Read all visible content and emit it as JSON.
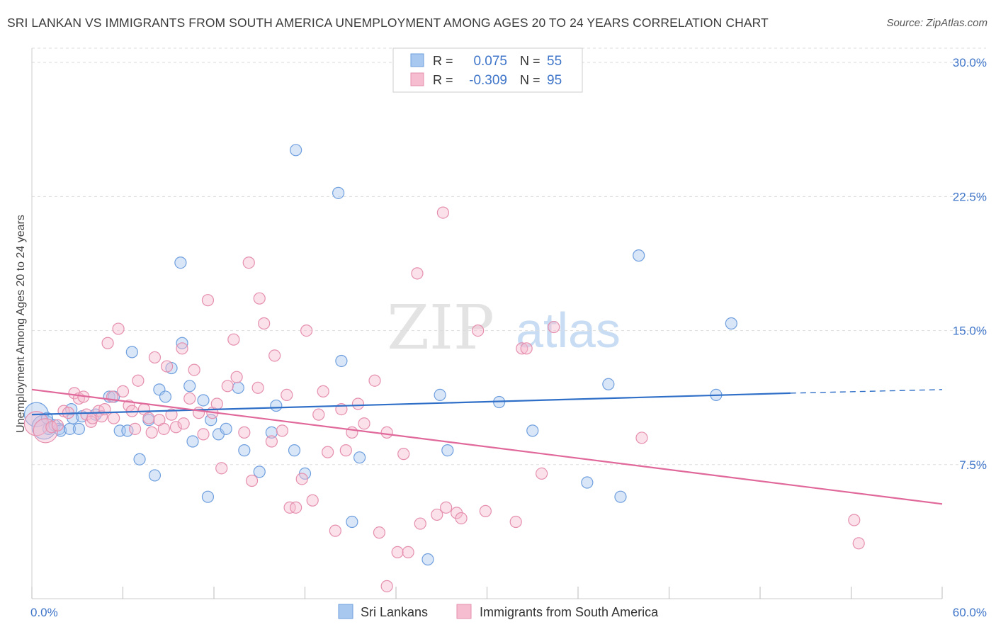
{
  "header": {
    "title": "SRI LANKAN VS IMMIGRANTS FROM SOUTH AMERICA UNEMPLOYMENT AMONG AGES 20 TO 24 YEARS CORRELATION CHART",
    "source": "Source: ZipAtlas.com"
  },
  "watermark": {
    "zip": "ZIP",
    "atlas": "atlas"
  },
  "colors": {
    "blue_fill": "#a9c8ef",
    "blue_stroke": "#6f9fde",
    "blue_line": "#2f6fc8",
    "pink_fill": "#f6bcd0",
    "pink_stroke": "#e58fae",
    "pink_line": "#e0689a",
    "tick_label": "#3f75c9",
    "grid": "#dddddd"
  },
  "chart_data": {
    "type": "scatter",
    "title": "SRI LANKAN VS IMMIGRANTS FROM SOUTH AMERICA UNEMPLOYMENT AMONG AGES 20 TO 24 YEARS CORRELATION CHART",
    "xlabel": "",
    "ylabel": "Unemployment Among Ages 20 to 24 years",
    "xlim": [
      0,
      60
    ],
    "ylim": [
      0,
      30.8
    ],
    "x_tick_labels": [
      "0.0%",
      "60.0%"
    ],
    "y_ticks": [
      7.5,
      15.0,
      22.5,
      30.0
    ],
    "y_tick_labels": [
      "7.5%",
      "15.0%",
      "22.5%",
      "30.0%"
    ],
    "grid": true,
    "legend_placement": "top-center",
    "legend": [
      {
        "r_label": "R =",
        "r_value": "0.075",
        "n_label": "N =",
        "n_value": "55"
      },
      {
        "r_label": "R =",
        "r_value": "-0.309",
        "n_label": "N =",
        "n_value": "95"
      }
    ],
    "bottom_legend": [
      "Sri Lankans",
      "Immigrants from South America"
    ],
    "series": [
      {
        "name": "Sri Lankans",
        "trend": {
          "x0": 0,
          "y0": 10.3,
          "x1": 50,
          "y1": 11.5,
          "dashed_to_x": 60,
          "dashed_to_y": 11.7
        },
        "points": [
          {
            "x": 0.3,
            "y": 10.3,
            "big": true
          },
          {
            "x": 0.8,
            "y": 9.6,
            "big": true
          },
          {
            "x": 1.0,
            "y": 10.1
          },
          {
            "x": 1.1,
            "y": 9.5
          },
          {
            "x": 1.5,
            "y": 9.7
          },
          {
            "x": 1.8,
            "y": 9.5
          },
          {
            "x": 1.9,
            "y": 9.4
          },
          {
            "x": 2.5,
            "y": 9.5
          },
          {
            "x": 2.6,
            "y": 10.6
          },
          {
            "x": 2.7,
            "y": 10.1
          },
          {
            "x": 3.1,
            "y": 9.5
          },
          {
            "x": 3.3,
            "y": 10.2
          },
          {
            "x": 4.2,
            "y": 10.3
          },
          {
            "x": 5.1,
            "y": 11.3
          },
          {
            "x": 5.4,
            "y": 11.3
          },
          {
            "x": 5.8,
            "y": 9.4
          },
          {
            "x": 6.3,
            "y": 9.4
          },
          {
            "x": 6.6,
            "y": 13.8
          },
          {
            "x": 7.1,
            "y": 7.8
          },
          {
            "x": 7.7,
            "y": 10.0
          },
          {
            "x": 8.1,
            "y": 6.9
          },
          {
            "x": 8.4,
            "y": 11.7
          },
          {
            "x": 8.8,
            "y": 11.3
          },
          {
            "x": 9.2,
            "y": 12.9
          },
          {
            "x": 9.8,
            "y": 18.8
          },
          {
            "x": 9.9,
            "y": 14.3
          },
          {
            "x": 10.4,
            "y": 11.9
          },
          {
            "x": 10.6,
            "y": 8.8
          },
          {
            "x": 11.3,
            "y": 11.1
          },
          {
            "x": 11.6,
            "y": 5.7
          },
          {
            "x": 11.8,
            "y": 10.0
          },
          {
            "x": 12.3,
            "y": 9.2
          },
          {
            "x": 12.8,
            "y": 9.5
          },
          {
            "x": 13.6,
            "y": 11.8
          },
          {
            "x": 14.0,
            "y": 8.3
          },
          {
            "x": 15.0,
            "y": 7.1
          },
          {
            "x": 15.8,
            "y": 9.3
          },
          {
            "x": 16.1,
            "y": 10.8
          },
          {
            "x": 17.3,
            "y": 8.3
          },
          {
            "x": 17.4,
            "y": 25.1
          },
          {
            "x": 18.0,
            "y": 7.0
          },
          {
            "x": 20.2,
            "y": 22.7
          },
          {
            "x": 20.4,
            "y": 13.3
          },
          {
            "x": 21.1,
            "y": 4.3
          },
          {
            "x": 21.6,
            "y": 7.9
          },
          {
            "x": 26.1,
            "y": 2.2
          },
          {
            "x": 26.9,
            "y": 11.4
          },
          {
            "x": 27.4,
            "y": 8.3
          },
          {
            "x": 30.8,
            "y": 11.0
          },
          {
            "x": 33.0,
            "y": 9.4
          },
          {
            "x": 36.6,
            "y": 6.5
          },
          {
            "x": 38.0,
            "y": 12.0
          },
          {
            "x": 38.8,
            "y": 5.7
          },
          {
            "x": 40.0,
            "y": 19.2
          },
          {
            "x": 45.1,
            "y": 11.4
          },
          {
            "x": 46.1,
            "y": 15.4
          }
        ]
      },
      {
        "name": "Immigrants from South America",
        "trend": {
          "x0": 0,
          "y0": 11.7,
          "x1": 60,
          "y1": 5.3
        },
        "points": [
          {
            "x": 0.3,
            "y": 9.8,
            "big": true
          },
          {
            "x": 0.9,
            "y": 9.4,
            "big": true
          },
          {
            "x": 1.3,
            "y": 9.6
          },
          {
            "x": 1.7,
            "y": 9.7
          },
          {
            "x": 2.1,
            "y": 10.5
          },
          {
            "x": 2.4,
            "y": 10.4
          },
          {
            "x": 2.8,
            "y": 11.5
          },
          {
            "x": 3.1,
            "y": 11.2
          },
          {
            "x": 3.4,
            "y": 11.3
          },
          {
            "x": 3.6,
            "y": 10.3
          },
          {
            "x": 3.9,
            "y": 9.9
          },
          {
            "x": 4.0,
            "y": 10.1
          },
          {
            "x": 4.4,
            "y": 10.5
          },
          {
            "x": 4.6,
            "y": 10.2
          },
          {
            "x": 4.8,
            "y": 10.6
          },
          {
            "x": 5.0,
            "y": 14.3
          },
          {
            "x": 5.3,
            "y": 11.3
          },
          {
            "x": 5.4,
            "y": 10.1
          },
          {
            "x": 5.7,
            "y": 15.1
          },
          {
            "x": 6.0,
            "y": 11.6
          },
          {
            "x": 6.4,
            "y": 10.8
          },
          {
            "x": 6.6,
            "y": 10.5
          },
          {
            "x": 6.8,
            "y": 9.5
          },
          {
            "x": 7.0,
            "y": 12.2
          },
          {
            "x": 7.4,
            "y": 10.6
          },
          {
            "x": 7.7,
            "y": 10.1
          },
          {
            "x": 7.9,
            "y": 9.3
          },
          {
            "x": 8.1,
            "y": 13.5
          },
          {
            "x": 8.4,
            "y": 10.0
          },
          {
            "x": 8.7,
            "y": 9.5
          },
          {
            "x": 8.9,
            "y": 13.0
          },
          {
            "x": 9.2,
            "y": 10.3
          },
          {
            "x": 9.5,
            "y": 9.6
          },
          {
            "x": 9.9,
            "y": 14.0
          },
          {
            "x": 10.0,
            "y": 9.8
          },
          {
            "x": 10.4,
            "y": 11.2
          },
          {
            "x": 10.7,
            "y": 12.8
          },
          {
            "x": 11.0,
            "y": 10.4
          },
          {
            "x": 11.3,
            "y": 9.2
          },
          {
            "x": 11.6,
            "y": 16.7
          },
          {
            "x": 11.9,
            "y": 10.4
          },
          {
            "x": 12.2,
            "y": 10.9
          },
          {
            "x": 12.5,
            "y": 7.3
          },
          {
            "x": 12.9,
            "y": 11.9
          },
          {
            "x": 13.3,
            "y": 14.5
          },
          {
            "x": 13.5,
            "y": 12.4
          },
          {
            "x": 14.0,
            "y": 9.3
          },
          {
            "x": 14.3,
            "y": 18.8
          },
          {
            "x": 14.5,
            "y": 6.6
          },
          {
            "x": 14.9,
            "y": 11.8
          },
          {
            "x": 15.0,
            "y": 16.8
          },
          {
            "x": 15.3,
            "y": 15.4
          },
          {
            "x": 15.8,
            "y": 8.8
          },
          {
            "x": 16.0,
            "y": 13.6
          },
          {
            "x": 16.5,
            "y": 9.4
          },
          {
            "x": 16.8,
            "y": 11.4
          },
          {
            "x": 17.0,
            "y": 5.1
          },
          {
            "x": 17.4,
            "y": 5.1
          },
          {
            "x": 17.8,
            "y": 6.7
          },
          {
            "x": 18.1,
            "y": 15.0
          },
          {
            "x": 18.5,
            "y": 5.5
          },
          {
            "x": 18.9,
            "y": 10.3
          },
          {
            "x": 19.2,
            "y": 11.6
          },
          {
            "x": 19.5,
            "y": 8.2
          },
          {
            "x": 20.0,
            "y": 3.8
          },
          {
            "x": 20.4,
            "y": 10.6
          },
          {
            "x": 20.7,
            "y": 8.3
          },
          {
            "x": 21.1,
            "y": 9.3
          },
          {
            "x": 21.5,
            "y": 10.9
          },
          {
            "x": 21.9,
            "y": 9.8
          },
          {
            "x": 22.6,
            "y": 12.2
          },
          {
            "x": 22.9,
            "y": 3.7
          },
          {
            "x": 23.4,
            "y": 9.3
          },
          {
            "x": 24.1,
            "y": 2.6
          },
          {
            "x": 24.8,
            "y": 2.6
          },
          {
            "x": 24.5,
            "y": 8.1
          },
          {
            "x": 25.4,
            "y": 18.2
          },
          {
            "x": 25.6,
            "y": 4.2
          },
          {
            "x": 26.7,
            "y": 4.7
          },
          {
            "x": 27.1,
            "y": 21.6
          },
          {
            "x": 27.3,
            "y": 5.1
          },
          {
            "x": 28.0,
            "y": 4.8
          },
          {
            "x": 28.3,
            "y": 4.5
          },
          {
            "x": 29.4,
            "y": 15.0
          },
          {
            "x": 29.9,
            "y": 4.9
          },
          {
            "x": 31.9,
            "y": 4.3
          },
          {
            "x": 32.3,
            "y": 14.0
          },
          {
            "x": 32.6,
            "y": 14.0
          },
          {
            "x": 33.6,
            "y": 7.0
          },
          {
            "x": 34.4,
            "y": 15.2
          },
          {
            "x": 40.2,
            "y": 9.0
          },
          {
            "x": 54.2,
            "y": 4.4
          },
          {
            "x": 54.5,
            "y": 3.1
          },
          {
            "x": 23.4,
            "y": 0.7
          }
        ]
      }
    ]
  }
}
